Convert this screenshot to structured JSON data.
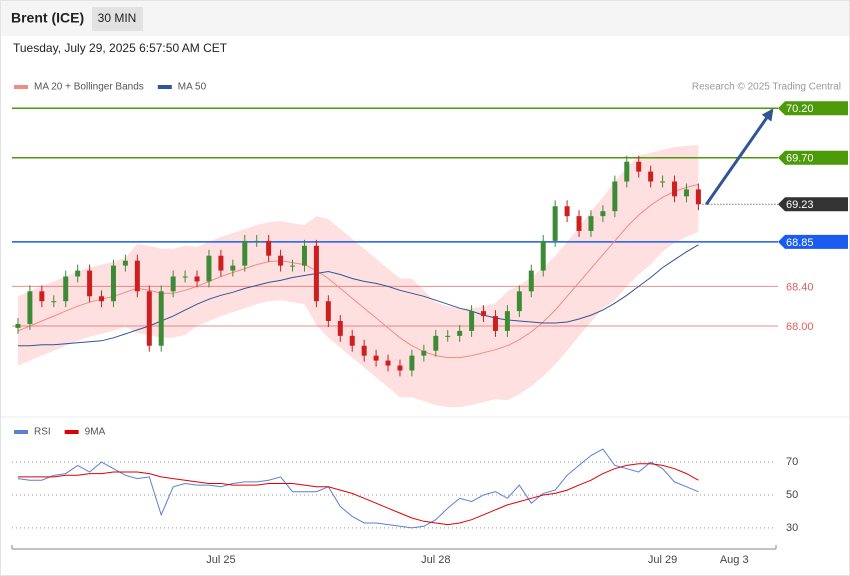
{
  "header": {
    "title": "Brent (ICE)",
    "interval": "30 MIN",
    "timestamp": "Tuesday, July 29, 2025 6:57:50 AM CET"
  },
  "chart_data": [
    {
      "type": "candlestick",
      "credit": "Research © 2025 Trading Central",
      "categories": [
        null,
        null,
        null,
        null,
        null,
        null,
        null,
        null,
        null,
        null,
        null,
        null,
        null,
        null,
        null,
        null,
        null,
        "Jul 25",
        null,
        null,
        null,
        null,
        null,
        null,
        null,
        null,
        null,
        null,
        null,
        null,
        null,
        null,
        null,
        null,
        null,
        "Jul 28",
        null,
        null,
        null,
        null,
        null,
        null,
        null,
        null,
        null,
        null,
        null,
        null,
        null,
        null,
        null,
        null,
        null,
        null,
        "Jul 29",
        null,
        null,
        null,
        null,
        null,
        "Aug 3",
        null,
        null,
        null
      ],
      "open": [
        67.98,
        68.02,
        68.35,
        68.25,
        68.25,
        68.5,
        68.56,
        68.3,
        68.25,
        68.61,
        68.66,
        68.35,
        67.8,
        68.35,
        68.5,
        68.5,
        68.45,
        68.71,
        68.56,
        68.61,
        68.86,
        68.86,
        68.71,
        68.61,
        68.61,
        68.81,
        68.25,
        68.05,
        67.9,
        67.8,
        67.7,
        67.65,
        67.6,
        67.55,
        67.7,
        67.75,
        67.9,
        67.9,
        67.95,
        68.15,
        68.1,
        67.95,
        68.15,
        68.35,
        68.56,
        68.86,
        69.21,
        69.11,
        68.96,
        69.11,
        69.16,
        69.46,
        69.66,
        69.56,
        69.46,
        69.46,
        69.31,
        69.38,
        null,
        null,
        null,
        null,
        null,
        null
      ],
      "high": [
        68.08,
        68.41,
        68.41,
        68.31,
        68.56,
        68.62,
        68.62,
        68.36,
        68.67,
        68.72,
        68.72,
        68.41,
        68.41,
        68.56,
        68.56,
        68.56,
        68.77,
        68.77,
        68.67,
        68.92,
        68.92,
        68.92,
        68.77,
        68.67,
        68.87,
        68.87,
        68.31,
        68.11,
        67.96,
        67.86,
        67.76,
        67.71,
        67.66,
        67.76,
        67.81,
        67.96,
        67.96,
        68.01,
        68.21,
        68.21,
        68.16,
        68.21,
        68.41,
        68.62,
        68.92,
        69.27,
        69.27,
        69.17,
        69.17,
        69.22,
        69.52,
        69.72,
        69.72,
        69.62,
        69.52,
        69.52,
        69.44,
        69.44,
        null,
        null,
        null,
        null,
        null,
        null
      ],
      "low": [
        67.92,
        67.96,
        68.19,
        68.19,
        68.19,
        68.44,
        68.24,
        68.19,
        68.19,
        68.55,
        68.29,
        67.74,
        67.74,
        68.29,
        68.44,
        68.39,
        68.39,
        68.5,
        68.5,
        68.55,
        68.8,
        68.65,
        68.55,
        68.55,
        68.55,
        68.19,
        67.99,
        67.84,
        67.74,
        67.64,
        67.59,
        67.54,
        67.49,
        67.49,
        67.64,
        67.69,
        67.84,
        67.84,
        67.89,
        68.04,
        67.89,
        67.89,
        68.09,
        68.29,
        68.5,
        68.8,
        69.05,
        68.9,
        68.9,
        69.05,
        69.1,
        69.4,
        69.5,
        69.4,
        69.4,
        69.25,
        69.25,
        69.17,
        null,
        null,
        null,
        null,
        null,
        null
      ],
      "close": [
        68.02,
        68.35,
        68.25,
        68.25,
        68.5,
        68.56,
        68.3,
        68.25,
        68.61,
        68.66,
        68.35,
        67.8,
        68.35,
        68.5,
        68.5,
        68.45,
        68.71,
        68.56,
        68.61,
        68.86,
        68.86,
        68.71,
        68.61,
        68.61,
        68.81,
        68.25,
        68.05,
        67.9,
        67.8,
        67.7,
        67.65,
        67.6,
        67.55,
        67.7,
        67.75,
        67.9,
        67.9,
        67.95,
        68.15,
        68.1,
        67.95,
        68.15,
        68.35,
        68.56,
        68.86,
        69.21,
        69.11,
        68.96,
        69.11,
        69.16,
        69.46,
        69.66,
        69.56,
        69.46,
        69.46,
        69.31,
        69.38,
        69.23,
        null,
        null,
        null,
        null,
        null,
        null
      ],
      "up_color": "#3d8b37",
      "down_color": "#cc1f1f",
      "series": [
        {
          "name": "MA 20 + Bollinger Bands",
          "color": "#f28b82",
          "band_color": "#ffe0e0",
          "values": [
            67.95,
            68.0,
            68.05,
            68.1,
            68.15,
            68.2,
            68.24,
            68.27,
            68.3,
            68.34,
            68.38,
            68.36,
            68.33,
            68.33,
            68.36,
            68.4,
            68.45,
            68.5,
            68.54,
            68.58,
            68.62,
            68.65,
            68.66,
            68.64,
            68.62,
            68.56,
            68.48,
            68.38,
            68.28,
            68.18,
            68.08,
            67.98,
            67.88,
            67.8,
            67.74,
            67.7,
            67.68,
            67.68,
            67.7,
            67.73,
            67.76,
            67.8,
            67.86,
            67.94,
            68.04,
            68.16,
            68.3,
            68.44,
            68.58,
            68.72,
            68.86,
            69.0,
            69.12,
            69.22,
            69.3,
            69.36,
            69.4,
            69.43,
            null,
            null,
            null,
            null,
            null,
            null
          ],
          "upper": [
            68.3,
            68.35,
            68.4,
            68.45,
            68.5,
            68.55,
            68.59,
            68.62,
            68.65,
            68.69,
            68.83,
            68.81,
            68.78,
            68.78,
            68.81,
            68.8,
            68.85,
            68.9,
            68.94,
            68.98,
            69.02,
            69.05,
            69.06,
            69.04,
            69.02,
            69.11,
            69.08,
            68.98,
            68.88,
            68.78,
            68.68,
            68.58,
            68.48,
            68.48,
            68.36,
            68.24,
            68.2,
            68.18,
            68.18,
            68.2,
            68.23,
            68.35,
            68.41,
            68.49,
            68.59,
            68.71,
            68.85,
            69.0,
            69.16,
            69.3,
            69.46,
            69.6,
            69.72,
            69.75,
            69.78,
            69.81,
            69.82,
            69.83,
            null,
            null,
            null,
            null,
            null,
            null
          ],
          "lower": [
            67.6,
            67.65,
            67.7,
            67.75,
            67.8,
            67.85,
            67.89,
            67.92,
            67.95,
            67.99,
            67.93,
            67.91,
            67.88,
            67.88,
            67.91,
            68.0,
            68.05,
            68.1,
            68.14,
            68.18,
            68.22,
            68.25,
            68.26,
            68.24,
            68.22,
            68.01,
            67.88,
            67.78,
            67.68,
            67.58,
            67.48,
            67.38,
            67.28,
            67.28,
            67.24,
            67.2,
            67.18,
            67.18,
            67.2,
            67.23,
            67.26,
            67.25,
            67.31,
            67.39,
            67.49,
            67.61,
            67.75,
            67.9,
            68.04,
            68.18,
            68.26,
            68.4,
            68.52,
            68.62,
            68.75,
            68.84,
            68.9,
            68.95,
            null,
            null,
            null,
            null,
            null,
            null
          ]
        },
        {
          "name": "MA 50",
          "color": "#2f5597",
          "values": [
            67.8,
            67.8,
            67.81,
            67.81,
            67.82,
            67.83,
            67.84,
            67.85,
            67.88,
            67.92,
            67.96,
            68.0,
            68.05,
            68.1,
            68.16,
            68.22,
            68.27,
            68.31,
            68.34,
            68.38,
            68.41,
            68.44,
            68.46,
            68.49,
            68.51,
            68.53,
            68.55,
            68.52,
            68.48,
            68.45,
            68.43,
            68.4,
            68.36,
            68.33,
            68.3,
            68.26,
            68.22,
            68.18,
            68.15,
            68.11,
            68.08,
            68.06,
            68.05,
            68.04,
            68.03,
            68.03,
            68.04,
            68.07,
            68.11,
            68.16,
            68.23,
            68.31,
            68.4,
            68.49,
            68.59,
            68.67,
            68.75,
            68.82,
            null,
            null,
            null,
            null,
            null,
            null
          ]
        }
      ],
      "ylim": [
        67.09,
        70.88
      ],
      "levels": [
        {
          "value": 70.2,
          "label": "70.20",
          "color": "#4c9a0a",
          "style": "box",
          "line": "solid"
        },
        {
          "value": 69.7,
          "label": "69.70",
          "color": "#4c9a0a",
          "style": "box",
          "line": "solid"
        },
        {
          "value": 69.23,
          "label": "69.23",
          "color": "#333333",
          "style": "box",
          "line": "dotted"
        },
        {
          "value": 68.85,
          "label": "68.85",
          "color": "#1a5cf0",
          "style": "box",
          "line": "solid"
        },
        {
          "value": 68.4,
          "label": "68.40",
          "color": "#e06060",
          "style": "text",
          "line": "solid"
        },
        {
          "value": 68.0,
          "label": "68.00",
          "color": "#e06060",
          "style": "text",
          "line": "solid"
        }
      ]
    },
    {
      "type": "line",
      "series": [
        {
          "name": "RSI",
          "color": "#5b7fd6",
          "values": [
            60,
            59,
            59,
            62,
            63,
            68,
            64,
            70,
            66,
            62,
            60,
            61,
            38,
            55,
            57,
            56,
            56,
            55,
            57,
            58,
            58,
            59,
            61,
            52,
            52,
            52,
            55,
            43,
            37,
            33,
            33,
            32,
            31,
            30,
            31,
            35,
            42,
            48,
            46,
            50,
            52,
            48,
            56,
            45,
            51,
            53,
            62,
            68,
            74,
            78,
            68,
            66,
            64,
            70,
            66,
            58,
            55,
            52,
            null,
            null,
            null,
            null,
            null,
            null
          ]
        },
        {
          "name": "9MA",
          "color": "#e00000",
          "values": [
            61,
            61,
            61,
            61,
            62,
            62,
            63,
            63,
            64,
            64,
            64,
            63,
            61,
            60,
            59,
            58,
            57,
            57,
            56,
            56,
            56,
            57,
            57,
            57,
            56,
            55,
            55,
            53,
            51,
            48,
            45,
            42,
            39,
            36,
            34,
            33,
            32,
            33,
            35,
            38,
            41,
            44,
            46,
            48,
            50,
            51,
            53,
            56,
            59,
            63,
            66,
            68,
            69,
            69,
            68,
            66,
            63,
            59,
            null,
            null,
            null,
            null,
            null,
            null
          ]
        }
      ],
      "ylim": [
        19,
        95
      ],
      "yticks": [
        30,
        50,
        70
      ]
    }
  ]
}
